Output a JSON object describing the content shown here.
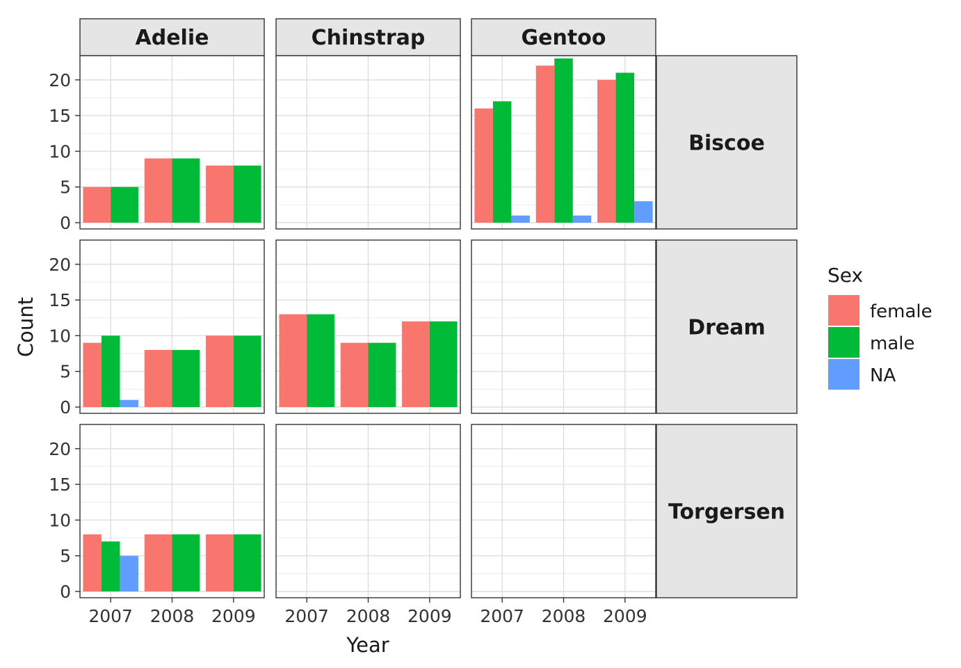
{
  "chart_data": {
    "type": "bar",
    "facet_cols": [
      "Adelie",
      "Chinstrap",
      "Gentoo"
    ],
    "facet_rows": [
      "Biscoe",
      "Dream",
      "Torgersen"
    ],
    "categories": [
      "2007",
      "2008",
      "2009"
    ],
    "xlabel": "Year",
    "ylabel": "Count",
    "ylim": [
      0,
      23
    ],
    "yticks": [
      0,
      5,
      10,
      15,
      20
    ],
    "grid": true,
    "legend": {
      "title": "Sex",
      "position": "right",
      "entries": [
        {
          "name": "female",
          "color": "#F8766D"
        },
        {
          "name": "male",
          "color": "#00BA38"
        },
        {
          "name": "NA",
          "color": "#619CFF"
        }
      ]
    },
    "panels": [
      {
        "row": "Biscoe",
        "col": "Adelie",
        "series": [
          {
            "name": "female",
            "values": [
              5,
              9,
              8
            ]
          },
          {
            "name": "male",
            "values": [
              5,
              9,
              8
            ]
          },
          {
            "name": "NA",
            "values": [
              0,
              0,
              0
            ]
          }
        ]
      },
      {
        "row": "Biscoe",
        "col": "Chinstrap",
        "series": [
          {
            "name": "female",
            "values": [
              0,
              0,
              0
            ]
          },
          {
            "name": "male",
            "values": [
              0,
              0,
              0
            ]
          },
          {
            "name": "NA",
            "values": [
              0,
              0,
              0
            ]
          }
        ]
      },
      {
        "row": "Biscoe",
        "col": "Gentoo",
        "series": [
          {
            "name": "female",
            "values": [
              16,
              22,
              20
            ]
          },
          {
            "name": "male",
            "values": [
              17,
              23,
              21
            ]
          },
          {
            "name": "NA",
            "values": [
              1,
              1,
              3
            ]
          }
        ]
      },
      {
        "row": "Dream",
        "col": "Adelie",
        "series": [
          {
            "name": "female",
            "values": [
              9,
              8,
              10
            ]
          },
          {
            "name": "male",
            "values": [
              10,
              8,
              10
            ]
          },
          {
            "name": "NA",
            "values": [
              1,
              0,
              0
            ]
          }
        ]
      },
      {
        "row": "Dream",
        "col": "Chinstrap",
        "series": [
          {
            "name": "female",
            "values": [
              13,
              9,
              12
            ]
          },
          {
            "name": "male",
            "values": [
              13,
              9,
              12
            ]
          },
          {
            "name": "NA",
            "values": [
              0,
              0,
              0
            ]
          }
        ]
      },
      {
        "row": "Dream",
        "col": "Gentoo",
        "series": [
          {
            "name": "female",
            "values": [
              0,
              0,
              0
            ]
          },
          {
            "name": "male",
            "values": [
              0,
              0,
              0
            ]
          },
          {
            "name": "NA",
            "values": [
              0,
              0,
              0
            ]
          }
        ]
      },
      {
        "row": "Torgersen",
        "col": "Adelie",
        "series": [
          {
            "name": "female",
            "values": [
              8,
              8,
              8
            ]
          },
          {
            "name": "male",
            "values": [
              7,
              8,
              8
            ]
          },
          {
            "name": "NA",
            "values": [
              5,
              0,
              0
            ]
          }
        ]
      },
      {
        "row": "Torgersen",
        "col": "Chinstrap",
        "series": [
          {
            "name": "female",
            "values": [
              0,
              0,
              0
            ]
          },
          {
            "name": "male",
            "values": [
              0,
              0,
              0
            ]
          },
          {
            "name": "NA",
            "values": [
              0,
              0,
              0
            ]
          }
        ]
      },
      {
        "row": "Torgersen",
        "col": "Gentoo",
        "series": [
          {
            "name": "female",
            "values": [
              0,
              0,
              0
            ]
          },
          {
            "name": "male",
            "values": [
              0,
              0,
              0
            ]
          },
          {
            "name": "NA",
            "values": [
              0,
              0,
              0
            ]
          }
        ]
      }
    ]
  }
}
